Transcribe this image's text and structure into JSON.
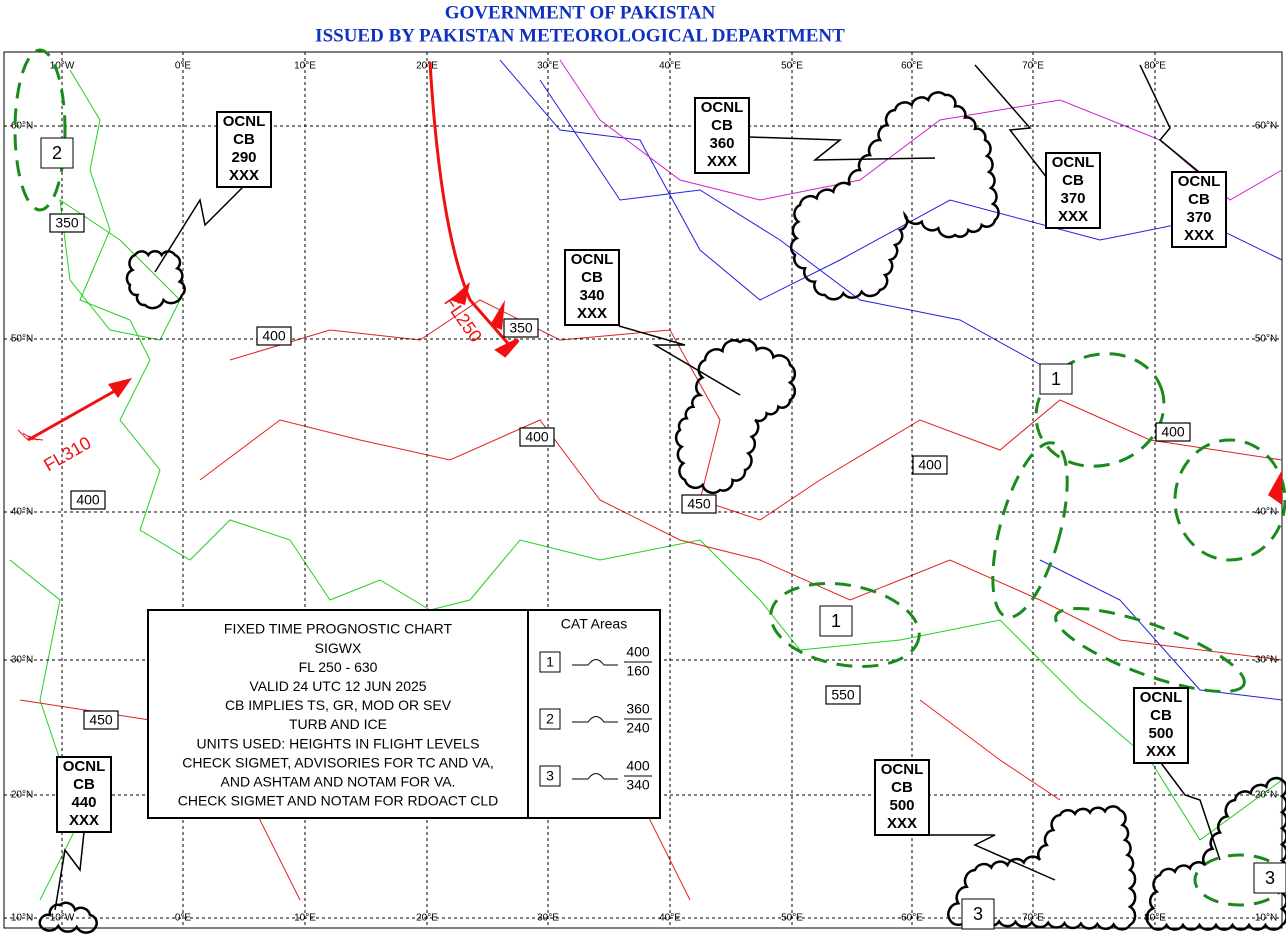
{
  "header": {
    "line1": "GOVERNMENT OF PAKISTAN",
    "line2": "ISSUED BY PAKISTAN METEOROLOGICAL DEPARTMENT"
  },
  "grid": {
    "lon_labels": [
      "10°W",
      "0°E",
      "10°E",
      "20°E",
      "30°E",
      "40°E",
      "50°E",
      "60°E",
      "70°E",
      "80°E"
    ],
    "lat_labels": [
      "60°N",
      "50°N",
      "40°N",
      "30°N",
      "20°N",
      "10°N"
    ]
  },
  "cb_boxes": [
    {
      "coverage": "OCNL",
      "type": "CB",
      "top": "290",
      "base": "XXX"
    },
    {
      "coverage": "OCNL",
      "type": "CB",
      "top": "360",
      "base": "XXX"
    },
    {
      "coverage": "OCNL",
      "type": "CB",
      "top": "340",
      "base": "XXX"
    },
    {
      "coverage": "OCNL",
      "type": "CB",
      "top": "370",
      "base": "XXX"
    },
    {
      "coverage": "OCNL",
      "type": "CB",
      "top": "370",
      "base": "XXX"
    },
    {
      "coverage": "OCNL",
      "type": "CB",
      "top": "500",
      "base": "XXX"
    },
    {
      "coverage": "OCNL",
      "type": "CB",
      "top": "500",
      "base": "XXX"
    },
    {
      "coverage": "OCNL",
      "type": "CB",
      "top": "440",
      "base": "XXX"
    }
  ],
  "tropopause_levels": [
    "350",
    "400",
    "350",
    "400",
    "400",
    "450",
    "400",
    "400",
    "550",
    "450"
  ],
  "cat_area_numbers": [
    "2",
    "1",
    "1",
    "3",
    "3"
  ],
  "jets": [
    {
      "label": "FL250"
    },
    {
      "label": "FL310"
    }
  ],
  "legend": {
    "lines": [
      "FIXED TIME PROGNOSTIC CHART",
      "SIGWX",
      "FL 250 - 630",
      "VALID 24 UTC 12 JUN 2025",
      "CB IMPLIES TS, GR, MOD OR SEV",
      "TURB AND ICE",
      "UNITS USED: HEIGHTS IN FLIGHT LEVELS",
      "CHECK SIGMET, ADVISORIES FOR TC AND VA,",
      "AND ASHTAM AND NOTAM FOR VA.",
      "CHECK SIGMET AND NOTAM FOR RDOACT CLD"
    ],
    "cat_title": "CAT Areas",
    "cat_items": [
      {
        "id": "1",
        "top": "400",
        "base": "160"
      },
      {
        "id": "2",
        "top": "360",
        "base": "240"
      },
      {
        "id": "3",
        "top": "400",
        "base": "340"
      }
    ]
  }
}
